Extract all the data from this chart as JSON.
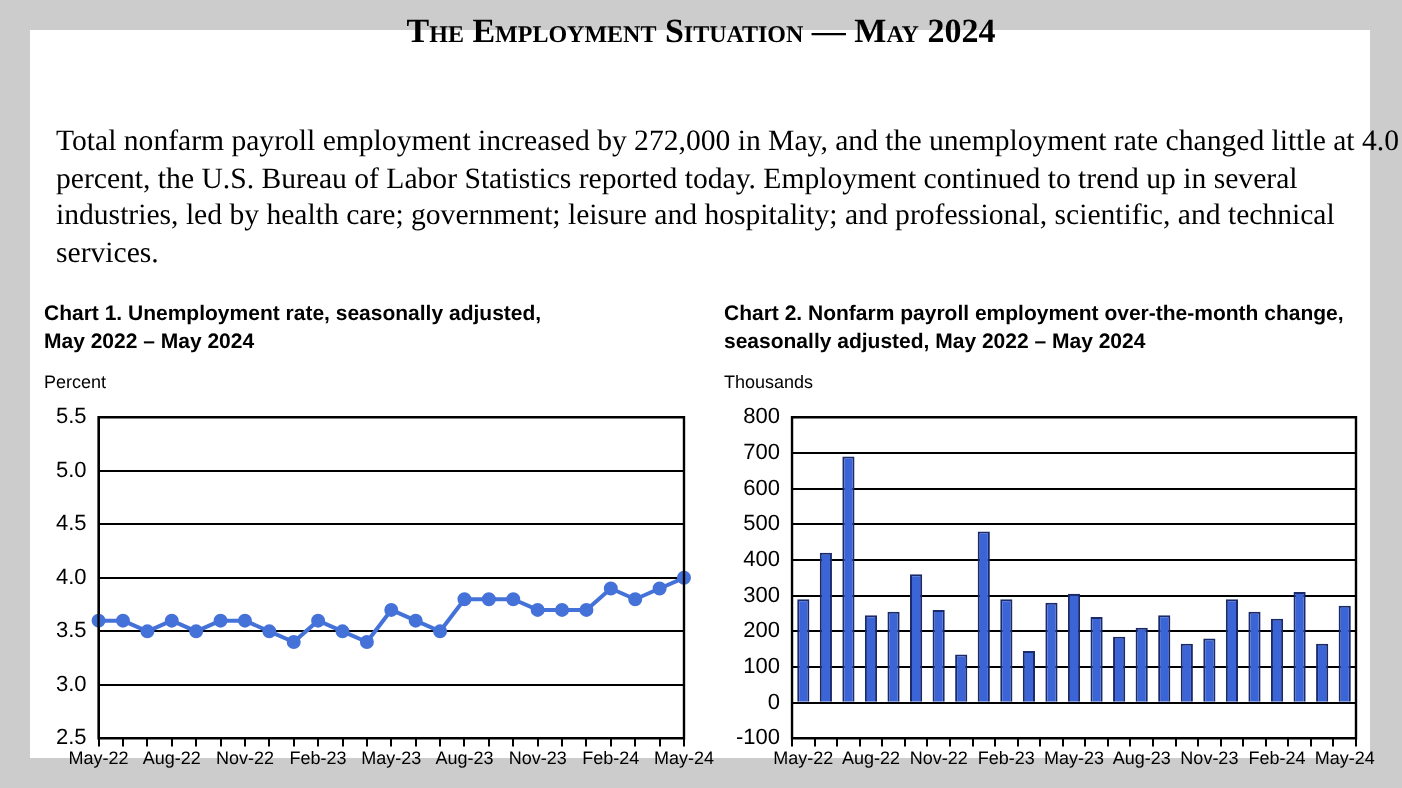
{
  "chart_data": [
    {
      "type": "line",
      "title": "Chart 1. Unemployment rate, seasonally adjusted, May 2022 – May 2024",
      "ylabel": "Percent",
      "annotations": [
        "The Employment Situation — May 2024",
        "Total nonfarm payroll employment increased by 272,000 in May, and the unemployment rate changed little at 4.0 percent, the U.S. Bureau of Labor Statistics reported today. Employment continued to trend up in several industries, led by health care; government; leisure and hospitality; and professional, scientific, and technical services."
      ],
      "categories": [
        "May-22",
        null,
        null,
        "Aug-22",
        null,
        null,
        "Nov-22",
        null,
        null,
        "Feb-23",
        null,
        null,
        "May-23",
        null,
        null,
        "Aug-23",
        null,
        null,
        "Nov-23",
        null,
        null,
        "Feb-24",
        null,
        null,
        "May-24"
      ],
      "series": [
        {
          "color": "#4472d8",
          "values": [
            3.6,
            3.6,
            3.5,
            3.6,
            3.5,
            3.6,
            3.6,
            3.5,
            3.4,
            3.6,
            3.5,
            3.4,
            3.7,
            3.6,
            3.5,
            3.8,
            3.8,
            3.8,
            3.7,
            3.7,
            3.7,
            3.9,
            3.8,
            3.9,
            4.0
          ]
        }
      ],
      "ylim": [
        2.5,
        5.5
      ],
      "yticks": [
        2.5,
        {
          "value": 3,
          "label": "3.0"
        },
        3.5,
        {
          "value": 4,
          "label": "4.0"
        },
        4.5,
        {
          "value": 5,
          "label": "5.0"
        },
        5.5
      ],
      "grid": "y",
      "marker": "circle",
      "line_style": "solid",
      "legend": false
    },
    {
      "type": "bar",
      "title": "Chart 2. Nonfarm payroll employment over-the-month change, seasonally adjusted, May 2022 – May 2024",
      "ylabel": "Thousands",
      "categories": [
        "May-22",
        null,
        null,
        "Aug-22",
        null,
        null,
        "Nov-22",
        null,
        null,
        "Feb-23",
        null,
        null,
        "May-23",
        null,
        null,
        "Aug-23",
        null,
        null,
        "Nov-23",
        null,
        null,
        "Feb-24",
        null,
        null,
        "May-24"
      ],
      "series": [
        {
          "color": "#3b64d6",
          "values": [
            290,
            420,
            690,
            245,
            255,
            360,
            260,
            135,
            480,
            290,
            145,
            280,
            305,
            240,
            185,
            210,
            245,
            165,
            180,
            290,
            255,
            235,
            310,
            165,
            272
          ]
        }
      ],
      "ylim": [
        -100,
        800
      ],
      "yticks": [
        -100,
        0,
        100,
        200,
        300,
        400,
        500,
        600,
        700,
        800
      ],
      "grid": "y",
      "legend": false
    }
  ]
}
